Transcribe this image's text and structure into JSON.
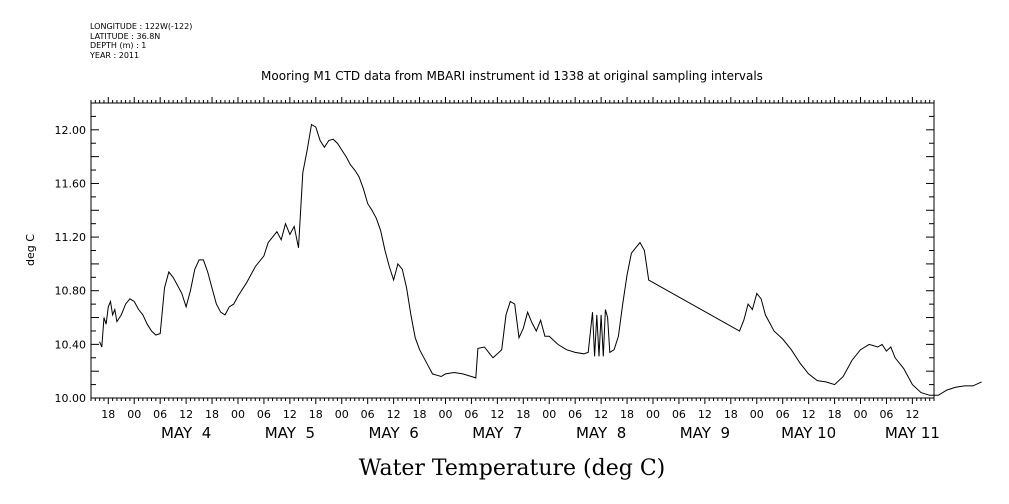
{
  "meta": {
    "longitude": "LONGITUDE : 122W(-122)",
    "latitude": "LATITUDE : 36.8N",
    "depth": "DEPTH (m) : 1",
    "year": "YEAR : 2011"
  },
  "chart_data": {
    "type": "line",
    "title": "Mooring M1 CTD data from MBARI instrument id 1338 at original sampling intervals",
    "xlabel": "Water Temperature (deg C)",
    "ylabel": "deg C",
    "ylim": [
      10.0,
      12.2
    ],
    "yticks": [
      "10.00",
      "10.40",
      "10.80",
      "11.20",
      "11.60",
      "12.00"
    ],
    "xlim": [
      "MAY 3 14:00",
      "MAY 11 17:00"
    ],
    "hour_ticks": [
      "18",
      "00",
      "06",
      "12",
      "18",
      "00",
      "06",
      "12",
      "18",
      "00",
      "06",
      "12",
      "18",
      "00",
      "06",
      "12",
      "18",
      "00",
      "06",
      "12",
      "18",
      "00",
      "06",
      "12",
      "18",
      "00",
      "06",
      "12",
      "18",
      "00",
      "06",
      "12"
    ],
    "day_labels": [
      "MAY  4",
      "MAY  5",
      "MAY  6",
      "MAY  7",
      "MAY  8",
      "MAY  9",
      "MAY 10",
      "MAY 11"
    ],
    "grid": false,
    "legend": "none",
    "series": [
      {
        "color": "#000000",
        "points": [
          [
            "MAY 3 16:00",
            10.42
          ],
          [
            "MAY 3 16:30",
            10.38
          ],
          [
            "MAY 3 17:00",
            10.6
          ],
          [
            "MAY 3 17:30",
            10.55
          ],
          [
            "MAY 3 18:00",
            10.68
          ],
          [
            "MAY 3 18:30",
            10.72
          ],
          [
            "MAY 3 19:00",
            10.62
          ],
          [
            "MAY 3 19:30",
            10.66
          ],
          [
            "MAY 3 20:00",
            10.57
          ],
          [
            "MAY 3 21:00",
            10.62
          ],
          [
            "MAY 3 22:00",
            10.7
          ],
          [
            "MAY 3 23:00",
            10.74
          ],
          [
            "MAY 4 00:00",
            10.72
          ],
          [
            "MAY 4 01:00",
            10.66
          ],
          [
            "MAY 4 02:00",
            10.62
          ],
          [
            "MAY 4 03:00",
            10.55
          ],
          [
            "MAY 4 04:00",
            10.5
          ],
          [
            "MAY 4 05:00",
            10.47
          ],
          [
            "MAY 4 06:00",
            10.48
          ],
          [
            "MAY 4 07:00",
            10.82
          ],
          [
            "MAY 4 08:00",
            10.94
          ],
          [
            "MAY 4 09:00",
            10.9
          ],
          [
            "MAY 4 10:00",
            10.84
          ],
          [
            "MAY 4 11:00",
            10.78
          ],
          [
            "MAY 4 12:00",
            10.68
          ],
          [
            "MAY 4 13:00",
            10.8
          ],
          [
            "MAY 4 14:00",
            10.96
          ],
          [
            "MAY 4 15:00",
            11.03
          ],
          [
            "MAY 4 16:00",
            11.03
          ],
          [
            "MAY 4 17:00",
            10.94
          ],
          [
            "MAY 4 18:00",
            10.82
          ],
          [
            "MAY 4 19:00",
            10.7
          ],
          [
            "MAY 4 20:00",
            10.64
          ],
          [
            "MAY 4 21:00",
            10.62
          ],
          [
            "MAY 4 22:00",
            10.68
          ],
          [
            "MAY 4 23:00",
            10.7
          ],
          [
            "MAY 5 00:00",
            10.76
          ],
          [
            "MAY 5 02:00",
            10.86
          ],
          [
            "MAY 5 04:00",
            10.98
          ],
          [
            "MAY 5 06:00",
            11.06
          ],
          [
            "MAY 5 07:00",
            11.16
          ],
          [
            "MAY 5 08:00",
            11.2
          ],
          [
            "MAY 5 09:00",
            11.24
          ],
          [
            "MAY 5 10:00",
            11.18
          ],
          [
            "MAY 5 11:00",
            11.3
          ],
          [
            "MAY 5 12:00",
            11.22
          ],
          [
            "MAY 5 13:00",
            11.28
          ],
          [
            "MAY 5 14:00",
            11.12
          ],
          [
            "MAY 5 15:00",
            11.68
          ],
          [
            "MAY 5 16:00",
            11.85
          ],
          [
            "MAY 5 17:00",
            12.04
          ],
          [
            "MAY 5 18:00",
            12.02
          ],
          [
            "MAY 5 19:00",
            11.92
          ],
          [
            "MAY 5 20:00",
            11.87
          ],
          [
            "MAY 5 21:00",
            11.92
          ],
          [
            "MAY 5 22:00",
            11.93
          ],
          [
            "MAY 5 23:00",
            11.9
          ],
          [
            "MAY 6 00:00",
            11.85
          ],
          [
            "MAY 6 01:00",
            11.8
          ],
          [
            "MAY 6 02:00",
            11.74
          ],
          [
            "MAY 6 03:00",
            11.7
          ],
          [
            "MAY 6 04:00",
            11.65
          ],
          [
            "MAY 6 05:00",
            11.56
          ],
          [
            "MAY 6 06:00",
            11.45
          ],
          [
            "MAY 6 07:00",
            11.4
          ],
          [
            "MAY 6 08:00",
            11.34
          ],
          [
            "MAY 6 09:00",
            11.25
          ],
          [
            "MAY 6 10:00",
            11.1
          ],
          [
            "MAY 6 11:00",
            10.98
          ],
          [
            "MAY 6 12:00",
            10.88
          ],
          [
            "MAY 6 13:00",
            11.0
          ],
          [
            "MAY 6 14:00",
            10.96
          ],
          [
            "MAY 6 15:00",
            10.82
          ],
          [
            "MAY 6 16:00",
            10.62
          ],
          [
            "MAY 6 17:00",
            10.45
          ],
          [
            "MAY 6 18:00",
            10.36
          ],
          [
            "MAY 6 19:00",
            10.3
          ],
          [
            "MAY 6 20:00",
            10.24
          ],
          [
            "MAY 6 21:00",
            10.18
          ],
          [
            "MAY 6 22:00",
            10.17
          ],
          [
            "MAY 6 23:00",
            10.16
          ],
          [
            "MAY 7 00:00",
            10.18
          ],
          [
            "MAY 7 02:00",
            10.19
          ],
          [
            "MAY 7 04:00",
            10.18
          ],
          [
            "MAY 7 06:00",
            10.16
          ],
          [
            "MAY 7 07:00",
            10.15
          ],
          [
            "MAY 7 07:30",
            10.37
          ],
          [
            "MAY 7 09:00",
            10.38
          ],
          [
            "MAY 7 10:00",
            10.34
          ],
          [
            "MAY 7 11:00",
            10.3
          ],
          [
            "MAY 7 12:00",
            10.33
          ],
          [
            "MAY 7 13:00",
            10.36
          ],
          [
            "MAY 7 14:00",
            10.62
          ],
          [
            "MAY 7 15:00",
            10.72
          ],
          [
            "MAY 7 16:00",
            10.7
          ],
          [
            "MAY 7 17:00",
            10.45
          ],
          [
            "MAY 7 18:00",
            10.52
          ],
          [
            "MAY 7 19:00",
            10.64
          ],
          [
            "MAY 7 20:00",
            10.56
          ],
          [
            "MAY 7 21:00",
            10.5
          ],
          [
            "MAY 7 22:00",
            10.58
          ],
          [
            "MAY 7 23:00",
            10.46
          ],
          [
            "MAY 8 00:00",
            10.46
          ],
          [
            "MAY 8 02:00",
            10.4
          ],
          [
            "MAY 8 04:00",
            10.36
          ],
          [
            "MAY 8 06:00",
            10.34
          ],
          [
            "MAY 8 08:00",
            10.33
          ],
          [
            "MAY 8 09:00",
            10.34
          ],
          [
            "MAY 8 10:00",
            10.64
          ],
          [
            "MAY 8 10:30",
            10.31
          ],
          [
            "MAY 8 11:00",
            10.62
          ],
          [
            "MAY 8 11:30",
            10.31
          ],
          [
            "MAY 8 12:00",
            10.62
          ],
          [
            "MAY 8 12:30",
            10.31
          ],
          [
            "MAY 8 13:00",
            10.66
          ],
          [
            "MAY 8 13:30",
            10.6
          ],
          [
            "MAY 8 14:00",
            10.34
          ],
          [
            "MAY 8 15:00",
            10.36
          ],
          [
            "MAY 8 16:00",
            10.46
          ],
          [
            "MAY 8 17:00",
            10.7
          ],
          [
            "MAY 8 18:00",
            10.92
          ],
          [
            "MAY 8 19:00",
            11.08
          ],
          [
            "MAY 8 20:00",
            11.12
          ],
          [
            "MAY 8 21:00",
            11.16
          ],
          [
            "MAY 8 22:00",
            11.1
          ],
          [
            "MAY 8 23:00",
            10.88
          ],
          [
            "MAY 9 20:00",
            10.5
          ],
          [
            "MAY 9 21:00",
            10.58
          ],
          [
            "MAY 9 22:00",
            10.7
          ],
          [
            "MAY 9 23:00",
            10.66
          ],
          [
            "MAY 10 00:00",
            10.78
          ],
          [
            "MAY 10 01:00",
            10.74
          ],
          [
            "MAY 10 02:00",
            10.62
          ],
          [
            "MAY 10 03:00",
            10.56
          ],
          [
            "MAY 10 04:00",
            10.5
          ],
          [
            "MAY 10 06:00",
            10.44
          ],
          [
            "MAY 10 08:00",
            10.36
          ],
          [
            "MAY 10 10:00",
            10.26
          ],
          [
            "MAY 10 12:00",
            10.18
          ],
          [
            "MAY 10 14:00",
            10.13
          ],
          [
            "MAY 10 16:00",
            10.12
          ],
          [
            "MAY 10 18:00",
            10.1
          ],
          [
            "MAY 10 20:00",
            10.16
          ],
          [
            "MAY 10 22:00",
            10.28
          ],
          [
            "MAY 11 00:00",
            10.36
          ],
          [
            "MAY 11 02:00",
            10.4
          ],
          [
            "MAY 11 04:00",
            10.38
          ],
          [
            "MAY 11 05:00",
            10.4
          ],
          [
            "MAY 11 06:00",
            10.35
          ],
          [
            "MAY 11 07:00",
            10.38
          ],
          [
            "MAY 11 08:00",
            10.3
          ],
          [
            "MAY 11 10:00",
            10.22
          ],
          [
            "MAY 11 12:00",
            10.1
          ],
          [
            "MAY 11 14:00",
            10.04
          ],
          [
            "MAY 11 16:00",
            10.02
          ],
          [
            "MAY 11 18:00",
            10.02
          ],
          [
            "MAY 11 20:00",
            10.06
          ],
          [
            "MAY 11 22:00",
            10.08
          ],
          [
            "MAY 12 00:00",
            10.09
          ],
          [
            "MAY 12 02:00",
            10.09
          ],
          [
            "MAY 12 04:00",
            10.12
          ]
        ]
      }
    ]
  }
}
